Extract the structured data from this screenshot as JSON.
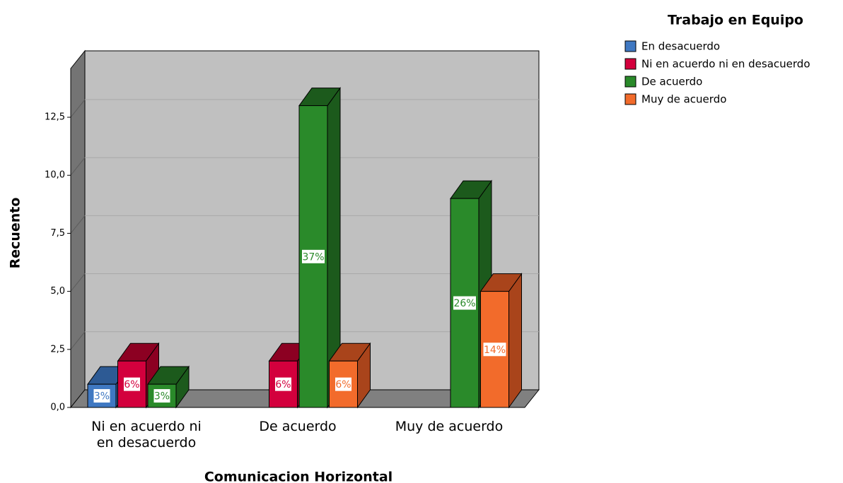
{
  "chart_data": {
    "type": "bar3d",
    "y_label": "Recuento",
    "x_label": "Comunicacion Horizontal",
    "legend_title": "Trabajo en Equipo",
    "legend_position": "top-right",
    "grid": true,
    "categories": [
      "Ni en acuerdo ni en desacuerdo",
      "De acuerdo",
      "Muy de acuerdo"
    ],
    "series": [
      {
        "name": "En desacuerdo",
        "color": "#3f78c2",
        "top_color": "#2d5a94",
        "values": [
          1,
          null,
          null
        ],
        "percent_labels": [
          "3%",
          null,
          null
        ]
      },
      {
        "name": "Ni en acuerdo ni en desacuerdo",
        "color": "#d3003d",
        "top_color": "#8c0022",
        "values": [
          2,
          2,
          null
        ],
        "percent_labels": [
          "6%",
          "6%",
          null
        ]
      },
      {
        "name": "De acuerdo",
        "color": "#2a8a2a",
        "top_color": "#1c5a1c",
        "values": [
          1,
          13,
          9
        ],
        "percent_labels": [
          "3%",
          "37%",
          "26%"
        ]
      },
      {
        "name": "Muy de acuerdo",
        "color": "#f26b2b",
        "top_color": "#a9441b",
        "values": [
          null,
          2,
          5
        ],
        "percent_labels": [
          null,
          "6%",
          "14%"
        ]
      }
    ],
    "ylim": [
      0,
      14.6
    ],
    "yticks": [
      {
        "value": 0,
        "label": "0,0"
      },
      {
        "value": 2.5,
        "label": "2,5"
      },
      {
        "value": 5,
        "label": "5,0"
      },
      {
        "value": 7.5,
        "label": "7,5"
      },
      {
        "value": 10,
        "label": "10,0"
      },
      {
        "value": 12.5,
        "label": "12,5"
      }
    ]
  }
}
